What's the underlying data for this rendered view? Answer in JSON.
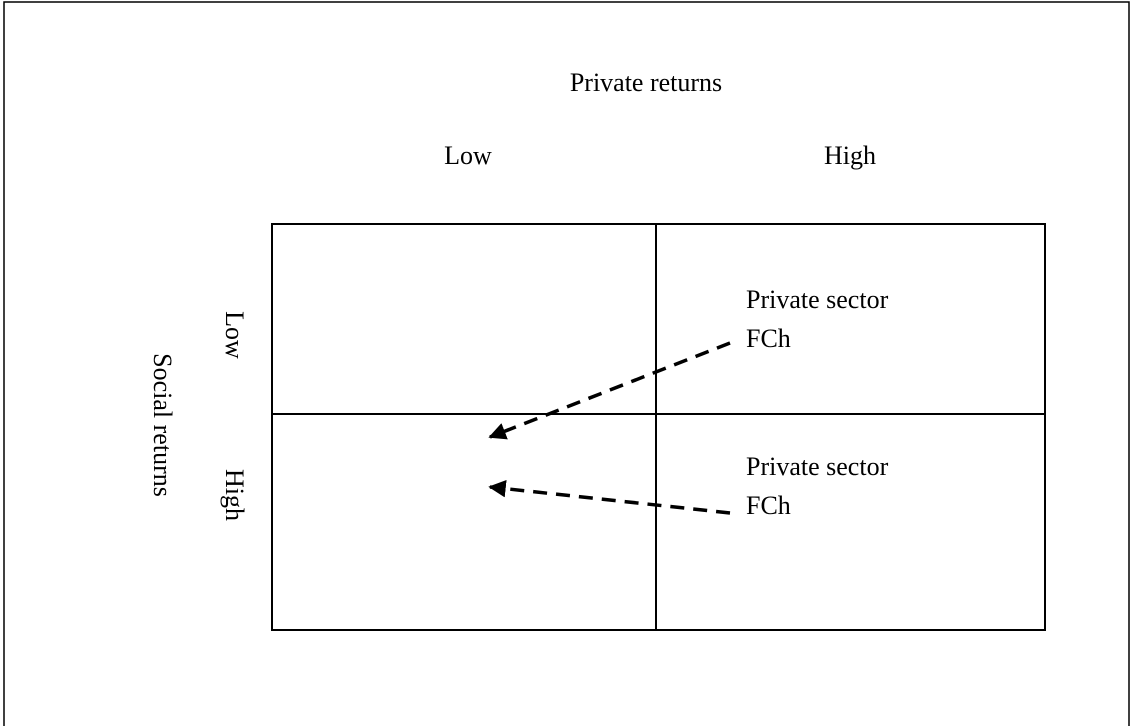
{
  "header": {
    "title": "Private returns"
  },
  "columns": [
    "Low",
    "High"
  ],
  "axis": {
    "title": "Social returns"
  },
  "rows": [
    "Low",
    "High"
  ],
  "cells": [
    {
      "label": "Private sector",
      "sublabel": "FCh"
    },
    {
      "label": "Private sector",
      "sublabel": "FCh"
    }
  ]
}
